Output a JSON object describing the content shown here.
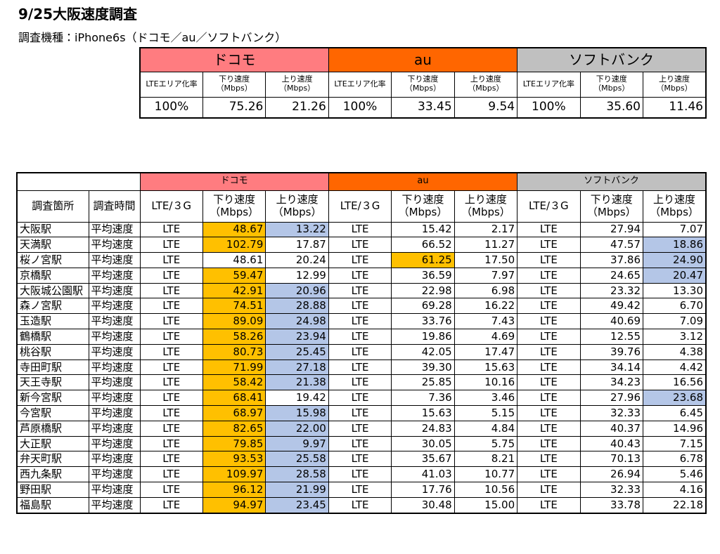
{
  "header": {
    "title": "9/25大阪速度調査",
    "subtitle": "調査機種：iPhone6s（ドコモ／au／ソフトバンク）"
  },
  "summary": {
    "carriers": [
      {
        "name": "ドコモ",
        "color": "#ff7c80",
        "columns": [
          [
            "LTEエリア化率"
          ],
          [
            "下り速度",
            "（Mbps）"
          ],
          [
            "上り速度",
            "（Mbps）"
          ]
        ],
        "values": [
          "100%",
          "75.26",
          "21.26"
        ]
      },
      {
        "name": "au",
        "color": "#ff6600",
        "columns": [
          [
            "LTEエリア化率"
          ],
          [
            "下り速度",
            "（Mbps）"
          ],
          [
            "上り速度",
            "（Mbps）"
          ]
        ],
        "values": [
          "100%",
          "33.45",
          "9.54"
        ]
      },
      {
        "name": "ソフトバンク",
        "color": "#c0c0c0",
        "columns": [
          [
            "LTEエリア化率"
          ],
          [
            "下り速度",
            "（Mbps）"
          ],
          [
            "上り速度",
            "（Mbps）"
          ]
        ],
        "values": [
          "100%",
          "35.60",
          "11.46"
        ]
      }
    ]
  },
  "table": {
    "headers": [
      "調査箇所",
      "調査時間"
    ],
    "carriers": [
      {
        "name": "ドコモ",
        "color": "#ff7c80",
        "columns": [
          [
            "LTE/３G"
          ],
          [
            "下り速度",
            "（Mbps）"
          ],
          [
            "上り速度",
            "（Mbps）"
          ]
        ]
      },
      {
        "name": "au",
        "color": "#ff6600",
        "columns": [
          [
            "LTE/３G"
          ],
          [
            "下り速度",
            "（Mbps）"
          ],
          [
            "上り速度",
            "（Mbps）"
          ]
        ]
      },
      {
        "name": "ソフトバンク",
        "color": "#c0c0c0",
        "columns": [
          [
            "LTE/３G"
          ],
          [
            "下り速度",
            "（Mbps）"
          ],
          [
            "上り速度",
            "（Mbps）"
          ]
        ]
      }
    ],
    "highlight_colors": {
      "orange": "#ffc000",
      "blue": "#b4c6e7"
    },
    "rows": [
      {
        "station": "大阪駅",
        "time": "平均速度",
        "cells": [
          "LTE",
          "48.67",
          "13.22",
          "LTE",
          "15.42",
          "2.17",
          "LTE",
          "27.94",
          "7.07"
        ],
        "orange": [
          1
        ],
        "blue": [
          2
        ]
      },
      {
        "station": "天満駅",
        "time": "平均速度",
        "cells": [
          "LTE",
          "102.79",
          "17.87",
          "LTE",
          "66.52",
          "11.27",
          "LTE",
          "47.57",
          "18.86"
        ],
        "orange": [
          1
        ],
        "blue": [
          8
        ]
      },
      {
        "station": "桜ノ宮駅",
        "time": "平均速度",
        "cells": [
          "LTE",
          "48.61",
          "20.24",
          "LTE",
          "61.25",
          "17.50",
          "LTE",
          "37.86",
          "24.90"
        ],
        "orange": [
          4
        ],
        "blue": [
          8
        ]
      },
      {
        "station": "京橋駅",
        "time": "平均速度",
        "cells": [
          "LTE",
          "59.47",
          "12.99",
          "LTE",
          "36.59",
          "7.97",
          "LTE",
          "24.65",
          "20.47"
        ],
        "orange": [
          1
        ],
        "blue": [
          8
        ]
      },
      {
        "station": "大阪城公園駅",
        "time": "平均速度",
        "cells": [
          "LTE",
          "42.91",
          "20.96",
          "LTE",
          "22.98",
          "6.98",
          "LTE",
          "23.32",
          "13.30"
        ],
        "orange": [
          1
        ],
        "blue": [
          2
        ]
      },
      {
        "station": "森ノ宮駅",
        "time": "平均速度",
        "cells": [
          "LTE",
          "74.51",
          "28.88",
          "LTE",
          "69.28",
          "16.22",
          "LTE",
          "49.42",
          "6.70"
        ],
        "orange": [
          1
        ],
        "blue": [
          2
        ]
      },
      {
        "station": "玉造駅",
        "time": "平均速度",
        "cells": [
          "LTE",
          "89.09",
          "24.98",
          "LTE",
          "33.76",
          "7.43",
          "LTE",
          "40.69",
          "7.09"
        ],
        "orange": [
          1
        ],
        "blue": [
          2
        ]
      },
      {
        "station": "鶴橋駅",
        "time": "平均速度",
        "cells": [
          "LTE",
          "58.26",
          "23.94",
          "LTE",
          "19.86",
          "4.69",
          "LTE",
          "12.55",
          "3.12"
        ],
        "orange": [
          1
        ],
        "blue": [
          2
        ]
      },
      {
        "station": "桃谷駅",
        "time": "平均速度",
        "cells": [
          "LTE",
          "80.73",
          "25.45",
          "LTE",
          "42.05",
          "17.47",
          "LTE",
          "39.76",
          "4.38"
        ],
        "orange": [
          1
        ],
        "blue": [
          2
        ]
      },
      {
        "station": "寺田町駅",
        "time": "平均速度",
        "cells": [
          "LTE",
          "71.99",
          "27.18",
          "LTE",
          "39.30",
          "15.63",
          "LTE",
          "34.14",
          "4.42"
        ],
        "orange": [
          1
        ],
        "blue": [
          2
        ]
      },
      {
        "station": "天王寺駅",
        "time": "平均速度",
        "cells": [
          "LTE",
          "58.42",
          "21.38",
          "LTE",
          "25.85",
          "10.16",
          "LTE",
          "34.23",
          "16.56"
        ],
        "orange": [
          1
        ],
        "blue": [
          2
        ]
      },
      {
        "station": "新今宮駅",
        "time": "平均速度",
        "cells": [
          "LTE",
          "68.41",
          "19.42",
          "LTE",
          "7.36",
          "3.46",
          "LTE",
          "27.96",
          "23.68"
        ],
        "orange": [
          1
        ],
        "blue": [
          8
        ]
      },
      {
        "station": "今宮駅",
        "time": "平均速度",
        "cells": [
          "LTE",
          "68.97",
          "15.98",
          "LTE",
          "15.63",
          "5.15",
          "LTE",
          "32.33",
          "6.45"
        ],
        "orange": [
          1
        ],
        "blue": [
          2
        ]
      },
      {
        "station": "芦原橋駅",
        "time": "平均速度",
        "cells": [
          "LTE",
          "82.65",
          "22.00",
          "LTE",
          "24.83",
          "4.84",
          "LTE",
          "40.37",
          "14.96"
        ],
        "orange": [
          1
        ],
        "blue": [
          2
        ]
      },
      {
        "station": "大正駅",
        "time": "平均速度",
        "cells": [
          "LTE",
          "79.85",
          "9.97",
          "LTE",
          "30.05",
          "5.75",
          "LTE",
          "40.43",
          "7.15"
        ],
        "orange": [
          1
        ],
        "blue": [
          2
        ]
      },
      {
        "station": "弁天町駅",
        "time": "平均速度",
        "cells": [
          "LTE",
          "93.53",
          "25.58",
          "LTE",
          "35.67",
          "8.21",
          "LTE",
          "70.13",
          "6.78"
        ],
        "orange": [
          1
        ],
        "blue": [
          2
        ]
      },
      {
        "station": "西九条駅",
        "time": "平均速度",
        "cells": [
          "LTE",
          "109.97",
          "28.58",
          "LTE",
          "41.03",
          "10.77",
          "LTE",
          "26.94",
          "5.46"
        ],
        "orange": [
          1
        ],
        "blue": [
          2
        ]
      },
      {
        "station": "野田駅",
        "time": "平均速度",
        "cells": [
          "LTE",
          "96.12",
          "21.99",
          "LTE",
          "17.76",
          "10.56",
          "LTE",
          "32.33",
          "4.16"
        ],
        "orange": [
          1
        ],
        "blue": [
          2
        ]
      },
      {
        "station": "福島駅",
        "time": "平均速度",
        "cells": [
          "LTE",
          "94.97",
          "23.45",
          "LTE",
          "30.48",
          "15.00",
          "LTE",
          "33.78",
          "22.18"
        ],
        "orange": [
          1
        ],
        "blue": [
          2
        ]
      }
    ]
  }
}
